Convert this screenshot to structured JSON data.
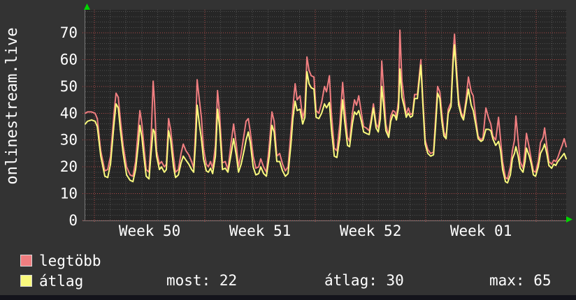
{
  "colors": {
    "background": "#333333",
    "plot_background": "#262626",
    "text": "#ffffff",
    "grid_major": "#b34b4b",
    "grid_minor": "#909090",
    "axis_line": "#787878",
    "axis_arrow": "#00d400",
    "series_max": "#f07e80",
    "series_avg": "#fafa7d",
    "window_edge": "#14141b"
  },
  "legend": {
    "items": [
      {
        "id": "legtobb",
        "label": "legtöbb",
        "color": "#f07e80"
      },
      {
        "id": "atlag",
        "label": "átlag",
        "color": "#fafa7d"
      }
    ],
    "stats": [
      {
        "label": "most:",
        "value": "22"
      },
      {
        "label": "átlag:",
        "value": "30"
      },
      {
        "label": "max:",
        "value": "65"
      }
    ]
  },
  "chart_data": {
    "type": "line",
    "title": "onlinestream.live",
    "grid": {
      "major": true,
      "minor": true
    },
    "x_axis": {
      "tick_labels": [
        "Week 50",
        "Week 51",
        "Week 52",
        "Week 01"
      ],
      "unit": "days",
      "range_days": [
        -0.58,
        29.9
      ],
      "week_boundaries_day": [
        0,
        7,
        14,
        21,
        28
      ]
    },
    "y_axis": {
      "ticks": [
        0,
        10,
        20,
        30,
        40,
        50,
        60,
        70
      ],
      "range": [
        0,
        78.6
      ]
    },
    "series": [
      {
        "id": "legtobb",
        "name": "legtöbb",
        "color": "#f07e80"
      },
      {
        "id": "atlag",
        "name": "átlag",
        "color": "#fafa7d"
      }
    ],
    "samples_format": [
      "day",
      "legtöbb(max)",
      "átlag(avg)"
    ],
    "samples": [
      [
        -0.58,
        40,
        36
      ],
      [
        -0.44,
        40.5,
        37
      ],
      [
        -0.18,
        40.5,
        37.5
      ],
      [
        0.04,
        40,
        37
      ],
      [
        0.18,
        38,
        35
      ],
      [
        0.4,
        26,
        24
      ],
      [
        0.66,
        18.5,
        16.5
      ],
      [
        0.84,
        19,
        16
      ],
      [
        1.02,
        24,
        21
      ],
      [
        1.24,
        40,
        36
      ],
      [
        1.37,
        47.5,
        43.5
      ],
      [
        1.51,
        46,
        42
      ],
      [
        1.64,
        38,
        34
      ],
      [
        1.82,
        28,
        25
      ],
      [
        2.04,
        20,
        17
      ],
      [
        2.26,
        17,
        15
      ],
      [
        2.44,
        16.5,
        14.5
      ],
      [
        2.61,
        22,
        19
      ],
      [
        2.79,
        35,
        29
      ],
      [
        2.88,
        41,
        35.5
      ],
      [
        3.01,
        36,
        31
      ],
      [
        3.15,
        27,
        23
      ],
      [
        3.28,
        19,
        16.5
      ],
      [
        3.46,
        18,
        15.5
      ],
      [
        3.59,
        30,
        25
      ],
      [
        3.72,
        52,
        34
      ],
      [
        3.81,
        44,
        33
      ],
      [
        3.94,
        26,
        24
      ],
      [
        4.12,
        21,
        19
      ],
      [
        4.25,
        22,
        20
      ],
      [
        4.43,
        20,
        18
      ],
      [
        4.56,
        21,
        19
      ],
      [
        4.7,
        38,
        33.5
      ],
      [
        4.83,
        34,
        30
      ],
      [
        5.01,
        24,
        20
      ],
      [
        5.14,
        18,
        16
      ],
      [
        5.32,
        19,
        17
      ],
      [
        5.49,
        25,
        21.5
      ],
      [
        5.63,
        28.5,
        24
      ],
      [
        5.8,
        26,
        22.5
      ],
      [
        5.98,
        24.5,
        21
      ],
      [
        6.16,
        22,
        19
      ],
      [
        6.29,
        19.5,
        18
      ],
      [
        6.42,
        35,
        30
      ],
      [
        6.51,
        52.5,
        43
      ],
      [
        6.65,
        45,
        36
      ],
      [
        6.78,
        38.5,
        30.5
      ],
      [
        6.91,
        27,
        23
      ],
      [
        7.09,
        21,
        18.5
      ],
      [
        7.22,
        20,
        18
      ],
      [
        7.36,
        22,
        19.5
      ],
      [
        7.49,
        19.5,
        17.5
      ],
      [
        7.67,
        28,
        24
      ],
      [
        7.8,
        48.5,
        41.5
      ],
      [
        7.93,
        40,
        35
      ],
      [
        8.11,
        21.5,
        19
      ],
      [
        8.29,
        22,
        19.5
      ],
      [
        8.46,
        19,
        18
      ],
      [
        8.64,
        28,
        24
      ],
      [
        8.82,
        36,
        30.5
      ],
      [
        9,
        28,
        24
      ],
      [
        9.13,
        20,
        18
      ],
      [
        9.3,
        25,
        21
      ],
      [
        9.48,
        32,
        26
      ],
      [
        9.61,
        37,
        30
      ],
      [
        9.75,
        38,
        33
      ],
      [
        9.88,
        33,
        29
      ],
      [
        10.06,
        24,
        20
      ],
      [
        10.23,
        19.5,
        17
      ],
      [
        10.41,
        20,
        17.5
      ],
      [
        10.54,
        23,
        20
      ],
      [
        10.72,
        20,
        17.5
      ],
      [
        10.9,
        18,
        16.5
      ],
      [
        11.08,
        28,
        24
      ],
      [
        11.25,
        40.5,
        35.5
      ],
      [
        11.39,
        37,
        33
      ],
      [
        11.56,
        24,
        22
      ],
      [
        11.74,
        25,
        22
      ],
      [
        11.92,
        21,
        18.5
      ],
      [
        12.1,
        18.5,
        16.5
      ],
      [
        12.27,
        20,
        17.5
      ],
      [
        12.45,
        33,
        28
      ],
      [
        12.58,
        42,
        38
      ],
      [
        12.72,
        51,
        44.5
      ],
      [
        12.85,
        45,
        41
      ],
      [
        13.03,
        46.5,
        41.5
      ],
      [
        13.2,
        38,
        36
      ],
      [
        13.34,
        42,
        38.5
      ],
      [
        13.47,
        61,
        55.5
      ],
      [
        13.6,
        56,
        51
      ],
      [
        13.74,
        54,
        49.5
      ],
      [
        13.91,
        53.5,
        49
      ],
      [
        14.05,
        41,
        38.5
      ],
      [
        14.22,
        40,
        38
      ],
      [
        14.4,
        44,
        40
      ],
      [
        14.58,
        50,
        43.5
      ],
      [
        14.71,
        48,
        42
      ],
      [
        14.89,
        54,
        44
      ],
      [
        15.02,
        40,
        34
      ],
      [
        15.2,
        27,
        24
      ],
      [
        15.37,
        26,
        23.5
      ],
      [
        15.55,
        36,
        31
      ],
      [
        15.73,
        51.5,
        45
      ],
      [
        15.86,
        42,
        37
      ],
      [
        16.04,
        31,
        28
      ],
      [
        16.17,
        29.5,
        27.5
      ],
      [
        16.35,
        40,
        36
      ],
      [
        16.48,
        45,
        40.5
      ],
      [
        16.61,
        43,
        39.5
      ],
      [
        16.75,
        46.5,
        41
      ],
      [
        16.92,
        40,
        37
      ],
      [
        17.06,
        35,
        33
      ],
      [
        17.23,
        34.5,
        32.5
      ],
      [
        17.41,
        33.5,
        32
      ],
      [
        17.54,
        38,
        36.5
      ],
      [
        17.68,
        43.5,
        42
      ],
      [
        17.85,
        36,
        34.5
      ],
      [
        17.99,
        34.5,
        33
      ],
      [
        18.12,
        42,
        38
      ],
      [
        18.21,
        59.5,
        50
      ],
      [
        18.34,
        48,
        42
      ],
      [
        18.47,
        36,
        33.5
      ],
      [
        18.65,
        31.5,
        31
      ],
      [
        18.78,
        39,
        37
      ],
      [
        18.92,
        41,
        39.5
      ],
      [
        19.05,
        40.5,
        39
      ],
      [
        19.14,
        38.5,
        37.5
      ],
      [
        19.27,
        45,
        42
      ],
      [
        19.36,
        71,
        56.5
      ],
      [
        19.49,
        52,
        46
      ],
      [
        19.63,
        45,
        42.5
      ],
      [
        19.76,
        39.5,
        38.5
      ],
      [
        19.89,
        42,
        40
      ],
      [
        20.03,
        39.5,
        38.5
      ],
      [
        20.16,
        40,
        39
      ],
      [
        20.29,
        47,
        45.5
      ],
      [
        20.47,
        47,
        45.5
      ],
      [
        20.6,
        55,
        53
      ],
      [
        20.69,
        60,
        58
      ],
      [
        20.82,
        45,
        43
      ],
      [
        20.96,
        30,
        28.5
      ],
      [
        21.13,
        26.5,
        25
      ],
      [
        21.31,
        25,
        24
      ],
      [
        21.49,
        25.5,
        24.5
      ],
      [
        21.62,
        38,
        35
      ],
      [
        21.75,
        50,
        47.5
      ],
      [
        21.89,
        48,
        45.5
      ],
      [
        22.02,
        40,
        37
      ],
      [
        22.15,
        33,
        31.5
      ],
      [
        22.29,
        31,
        30.5
      ],
      [
        22.42,
        41.5,
        40
      ],
      [
        22.6,
        44,
        42.5
      ],
      [
        22.73,
        62,
        59
      ],
      [
        22.82,
        69.5,
        65.5
      ],
      [
        22.95,
        57,
        54
      ],
      [
        23.08,
        45,
        43
      ],
      [
        23.26,
        40,
        39
      ],
      [
        23.39,
        38.5,
        37.5
      ],
      [
        23.57,
        46,
        44
      ],
      [
        23.7,
        53.5,
        49
      ],
      [
        23.88,
        48,
        43
      ],
      [
        24.01,
        46.5,
        41
      ],
      [
        24.19,
        37,
        35
      ],
      [
        24.32,
        31.5,
        30.5
      ],
      [
        24.5,
        30,
        29.5
      ],
      [
        24.63,
        31,
        30
      ],
      [
        24.81,
        42,
        34
      ],
      [
        24.99,
        38,
        34
      ],
      [
        25.12,
        36,
        33.5
      ],
      [
        25.25,
        31.5,
        30.5
      ],
      [
        25.43,
        30,
        28
      ],
      [
        25.61,
        38.5,
        29.5
      ],
      [
        25.74,
        30,
        26
      ],
      [
        25.87,
        22,
        19
      ],
      [
        26.05,
        16,
        14.5
      ],
      [
        26.18,
        15.5,
        14
      ],
      [
        26.36,
        20,
        17
      ],
      [
        26.49,
        26,
        23
      ],
      [
        26.62,
        30,
        25
      ],
      [
        26.71,
        39,
        27.5
      ],
      [
        26.85,
        30,
        24
      ],
      [
        26.98,
        22,
        19.5
      ],
      [
        27.16,
        19.5,
        18
      ],
      [
        27.29,
        26,
        22
      ],
      [
        27.38,
        32.5,
        27
      ],
      [
        27.56,
        27,
        24
      ],
      [
        27.69,
        22.5,
        21
      ],
      [
        27.82,
        18.5,
        17
      ],
      [
        27.96,
        18,
        16.5
      ],
      [
        28.13,
        22,
        20
      ],
      [
        28.27,
        29,
        25
      ],
      [
        28.44,
        31,
        27
      ],
      [
        28.53,
        34.5,
        28.5
      ],
      [
        28.67,
        28,
        25
      ],
      [
        28.8,
        22,
        20.5
      ],
      [
        28.98,
        21,
        19.5
      ],
      [
        29.11,
        22.5,
        21
      ],
      [
        29.24,
        22,
        20.5
      ],
      [
        29.37,
        23.5,
        22
      ],
      [
        29.51,
        26,
        23
      ],
      [
        29.64,
        28,
        24
      ],
      [
        29.77,
        30.5,
        25
      ],
      [
        29.9,
        27.5,
        23
      ]
    ]
  }
}
